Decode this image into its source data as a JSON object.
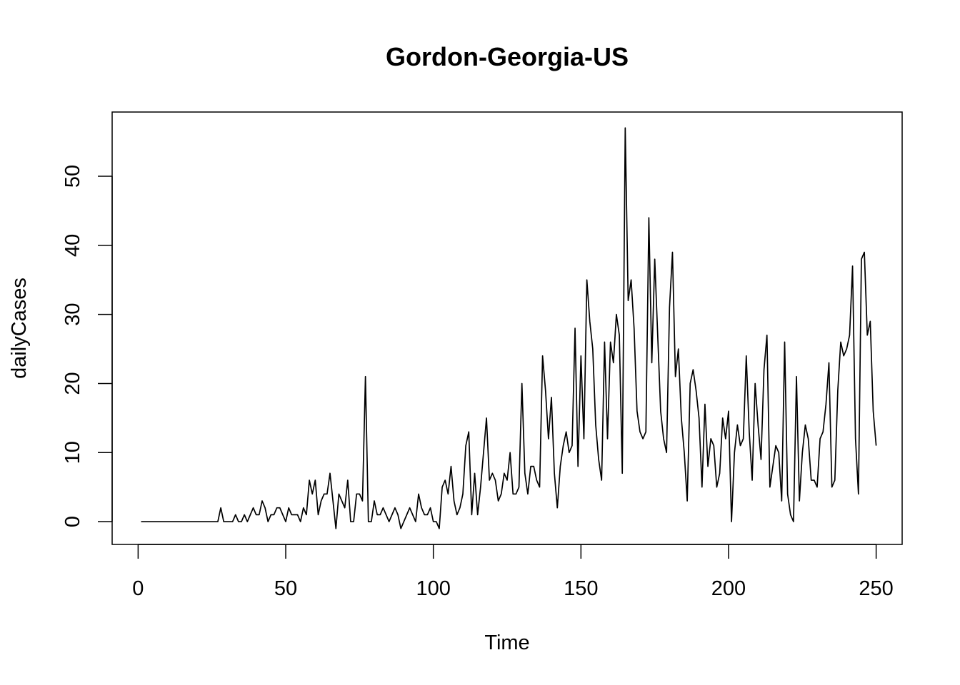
{
  "chart_data": {
    "type": "line",
    "title": "Gordon-Georgia-US",
    "xlabel": "Time",
    "ylabel": "dailyCases",
    "xlim": [
      -8.8,
      258.8
    ],
    "ylim": [
      -3.3,
      59.3
    ],
    "x_ticks": [
      0,
      50,
      100,
      150,
      200,
      250
    ],
    "y_ticks": [
      0,
      10,
      20,
      30,
      40,
      50
    ],
    "grid": false,
    "legend": "none",
    "x_start": 1,
    "series": [
      {
        "color": "#000000",
        "values": [
          0,
          0,
          0,
          0,
          0,
          0,
          0,
          0,
          0,
          0,
          0,
          0,
          0,
          0,
          0,
          0,
          0,
          0,
          0,
          0,
          0,
          0,
          0,
          0,
          0,
          0,
          0,
          2,
          0,
          0,
          0,
          0,
          1,
          0,
          0,
          1,
          0,
          1,
          2,
          1,
          1,
          3,
          2,
          0,
          1,
          1,
          2,
          2,
          1,
          0,
          2,
          1,
          1,
          1,
          0,
          2,
          1,
          6,
          4,
          6,
          1,
          3,
          4,
          4,
          7,
          3,
          -1,
          4,
          3,
          2,
          6,
          0,
          0,
          4,
          4,
          3,
          21,
          0,
          0,
          3,
          1,
          1,
          2,
          1,
          0,
          1,
          2,
          1,
          -1,
          0,
          1,
          2,
          1,
          0,
          4,
          2,
          1,
          1,
          2,
          0,
          0,
          -1,
          5,
          6,
          4,
          8,
          3,
          1,
          2,
          4,
          11,
          13,
          1,
          7,
          1,
          5,
          10,
          15,
          6,
          7,
          6,
          3,
          4,
          7,
          6,
          10,
          4,
          4,
          5,
          20,
          7,
          4,
          8,
          8,
          6,
          5,
          24,
          19,
          12,
          18,
          7,
          2,
          8,
          11,
          13,
          10,
          11,
          28,
          8,
          24,
          12,
          35,
          29,
          25,
          14,
          9,
          6,
          26,
          12,
          26,
          23,
          30,
          27,
          7,
          57,
          32,
          35,
          28,
          16,
          13,
          12,
          13,
          44,
          23,
          38,
          27,
          16,
          12,
          10,
          31,
          39,
          21,
          25,
          15,
          10,
          3,
          20,
          22,
          19,
          15,
          5,
          17,
          8,
          12,
          11,
          5,
          7,
          15,
          12,
          16,
          0,
          10,
          14,
          11,
          12,
          24,
          13,
          6,
          20,
          14,
          9,
          22,
          27,
          5,
          8,
          11,
          10,
          3,
          26,
          4,
          1,
          0,
          21,
          3,
          10,
          14,
          12,
          6,
          6,
          5,
          12,
          13,
          17,
          23,
          5,
          6,
          19,
          26,
          24,
          25,
          27,
          37,
          12,
          4,
          38,
          39,
          27,
          29,
          16,
          11
        ]
      }
    ]
  }
}
